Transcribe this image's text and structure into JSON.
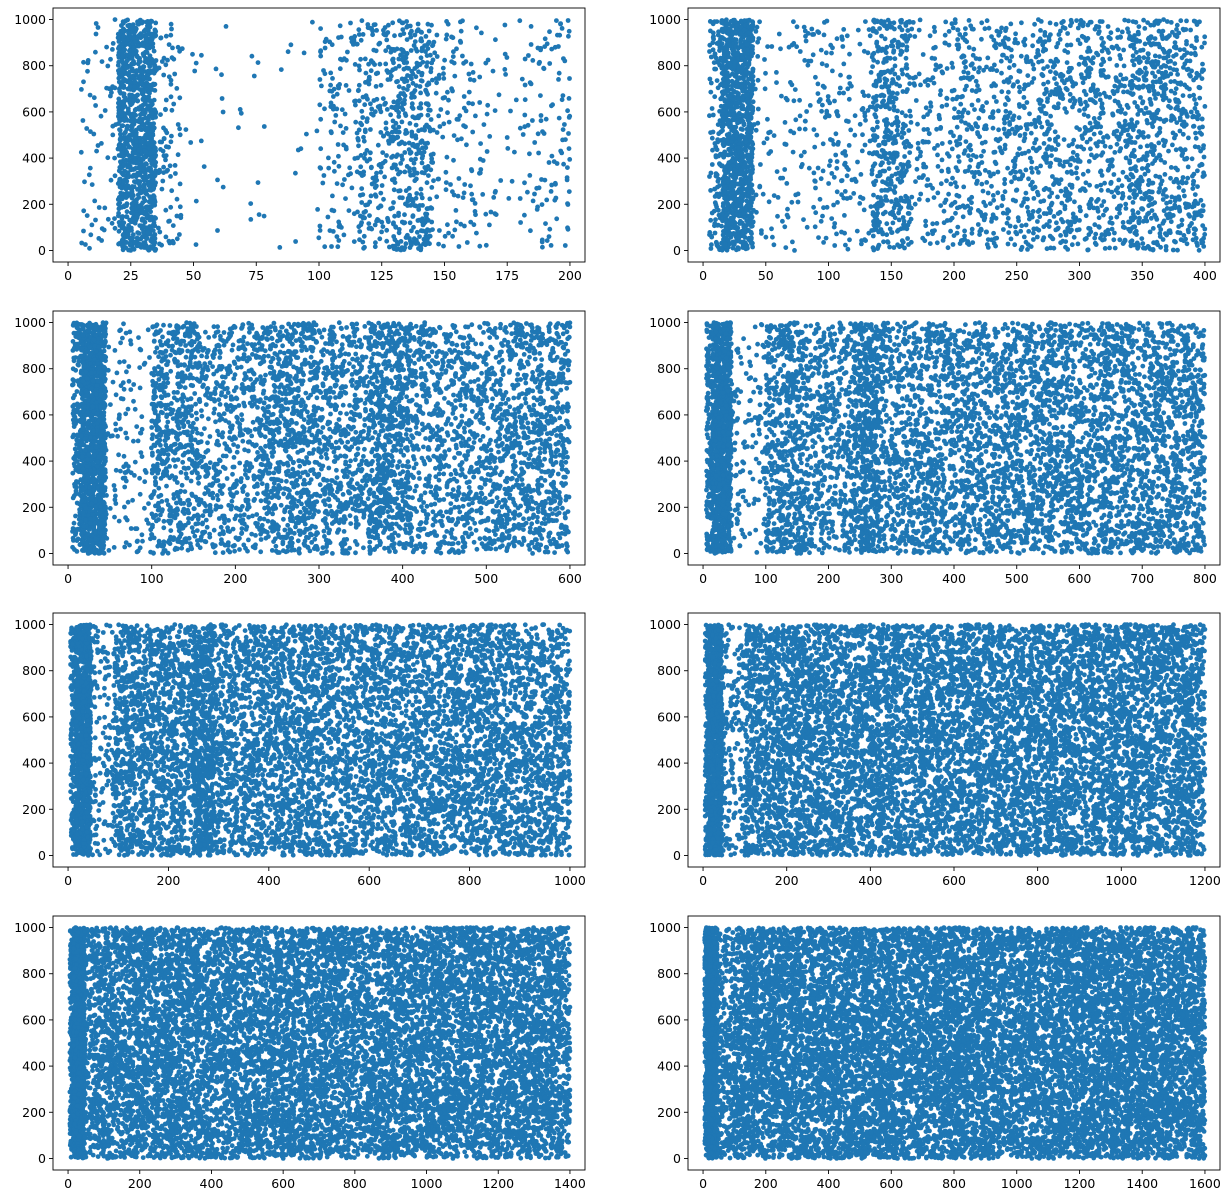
{
  "style": {
    "point_color": "#1f77b4",
    "axes_color": "#000000",
    "background": "#ffffff"
  },
  "chart_data": [
    {
      "type": "scatter",
      "title": "",
      "xlabel": "",
      "ylabel": "",
      "grid": false,
      "xlim": [
        -6,
        206
      ],
      "ylim": [
        -50,
        1050
      ],
      "xticks": [
        0,
        25,
        50,
        75,
        100,
        125,
        150,
        175,
        200
      ],
      "yticks": [
        0,
        200,
        400,
        600,
        800,
        1000
      ],
      "density": [
        [
          5,
          20,
          70
        ],
        [
          20,
          35,
          1100
        ],
        [
          35,
          45,
          90
        ],
        [
          45,
          100,
          45
        ],
        [
          100,
          115,
          110
        ],
        [
          115,
          130,
          230
        ],
        [
          130,
          145,
          360
        ],
        [
          145,
          165,
          130
        ],
        [
          165,
          180,
          35
        ],
        [
          180,
          200,
          120
        ]
      ]
    },
    {
      "type": "scatter",
      "title": "",
      "xlabel": "",
      "ylabel": "",
      "grid": false,
      "xlim": [
        -12,
        412
      ],
      "ylim": [
        -50,
        1050
      ],
      "xticks": [
        0,
        50,
        100,
        150,
        200,
        250,
        300,
        350,
        400
      ],
      "yticks": [
        0,
        200,
        400,
        600,
        800,
        1000
      ],
      "density": [
        [
          5,
          15,
          120
        ],
        [
          15,
          40,
          1100
        ],
        [
          40,
          80,
          90
        ],
        [
          80,
          135,
          190
        ],
        [
          135,
          165,
          420
        ],
        [
          165,
          200,
          150
        ],
        [
          200,
          260,
          420
        ],
        [
          260,
          300,
          330
        ],
        [
          300,
          340,
          340
        ],
        [
          340,
          370,
          380
        ],
        [
          370,
          400,
          280
        ]
      ]
    },
    {
      "type": "scatter",
      "title": "",
      "xlabel": "",
      "ylabel": "",
      "grid": false,
      "xlim": [
        -18,
        618
      ],
      "ylim": [
        -50,
        1050
      ],
      "xticks": [
        0,
        100,
        200,
        300,
        400,
        500,
        600
      ],
      "yticks": [
        0,
        200,
        400,
        600,
        800,
        1000
      ],
      "density": [
        [
          5,
          15,
          150
        ],
        [
          15,
          45,
          1300
        ],
        [
          45,
          100,
          130
        ],
        [
          100,
          160,
          620
        ],
        [
          160,
          230,
          500
        ],
        [
          230,
          300,
          780
        ],
        [
          300,
          360,
          520
        ],
        [
          360,
          410,
          720
        ],
        [
          410,
          600,
          1650
        ]
      ]
    },
    {
      "type": "scatter",
      "title": "",
      "xlabel": "",
      "ylabel": "",
      "grid": false,
      "xlim": [
        -24,
        824
      ],
      "ylim": [
        -50,
        1050
      ],
      "xticks": [
        0,
        100,
        200,
        300,
        400,
        500,
        600,
        700,
        800
      ],
      "yticks": [
        0,
        200,
        400,
        600,
        800,
        1000
      ],
      "density": [
        [
          5,
          15,
          150
        ],
        [
          15,
          45,
          1200
        ],
        [
          45,
          100,
          120
        ],
        [
          100,
          165,
          620
        ],
        [
          165,
          240,
          480
        ],
        [
          240,
          280,
          560
        ],
        [
          280,
          800,
          4200
        ]
      ]
    },
    {
      "type": "scatter",
      "title": "",
      "xlabel": "",
      "ylabel": "",
      "grid": false,
      "xlim": [
        -30,
        1030
      ],
      "ylim": [
        -50,
        1050
      ],
      "xticks": [
        0,
        200,
        400,
        600,
        800,
        1000
      ],
      "yticks": [
        0,
        200,
        400,
        600,
        800,
        1000
      ],
      "density": [
        [
          5,
          15,
          150
        ],
        [
          15,
          45,
          1100
        ],
        [
          45,
          90,
          130
        ],
        [
          90,
          250,
          1400
        ],
        [
          250,
          290,
          650
        ],
        [
          290,
          1000,
          5600
        ]
      ]
    },
    {
      "type": "scatter",
      "title": "",
      "xlabel": "",
      "ylabel": "",
      "grid": false,
      "xlim": [
        -36,
        1236
      ],
      "ylim": [
        -50,
        1050
      ],
      "xticks": [
        0,
        200,
        400,
        600,
        800,
        1000,
        1200
      ],
      "yticks": [
        0,
        200,
        400,
        600,
        800,
        1000
      ],
      "density": [
        [
          5,
          15,
          150
        ],
        [
          15,
          45,
          1100
        ],
        [
          45,
          100,
          180
        ],
        [
          100,
          1200,
          9000
        ]
      ]
    },
    {
      "type": "scatter",
      "title": "",
      "xlabel": "",
      "ylabel": "",
      "grid": false,
      "xlim": [
        -42,
        1442
      ],
      "ylim": [
        -50,
        1050
      ],
      "xticks": [
        0,
        200,
        400,
        600,
        800,
        1000,
        1200,
        1400
      ],
      "yticks": [
        0,
        200,
        400,
        600,
        800,
        1000
      ],
      "density": [
        [
          5,
          15,
          180
        ],
        [
          15,
          45,
          1200
        ],
        [
          45,
          80,
          250
        ],
        [
          80,
          1400,
          11000
        ]
      ]
    },
    {
      "type": "scatter",
      "title": "",
      "xlabel": "",
      "ylabel": "",
      "grid": false,
      "xlim": [
        -48,
        1648
      ],
      "ylim": [
        -50,
        1050
      ],
      "xticks": [
        0,
        200,
        400,
        600,
        800,
        1000,
        1200,
        1400,
        1600
      ],
      "yticks": [
        0,
        200,
        400,
        600,
        800,
        1000
      ],
      "density": [
        [
          5,
          15,
          180
        ],
        [
          15,
          45,
          1200
        ],
        [
          45,
          100,
          280
        ],
        [
          100,
          1600,
          12500
        ]
      ]
    }
  ]
}
